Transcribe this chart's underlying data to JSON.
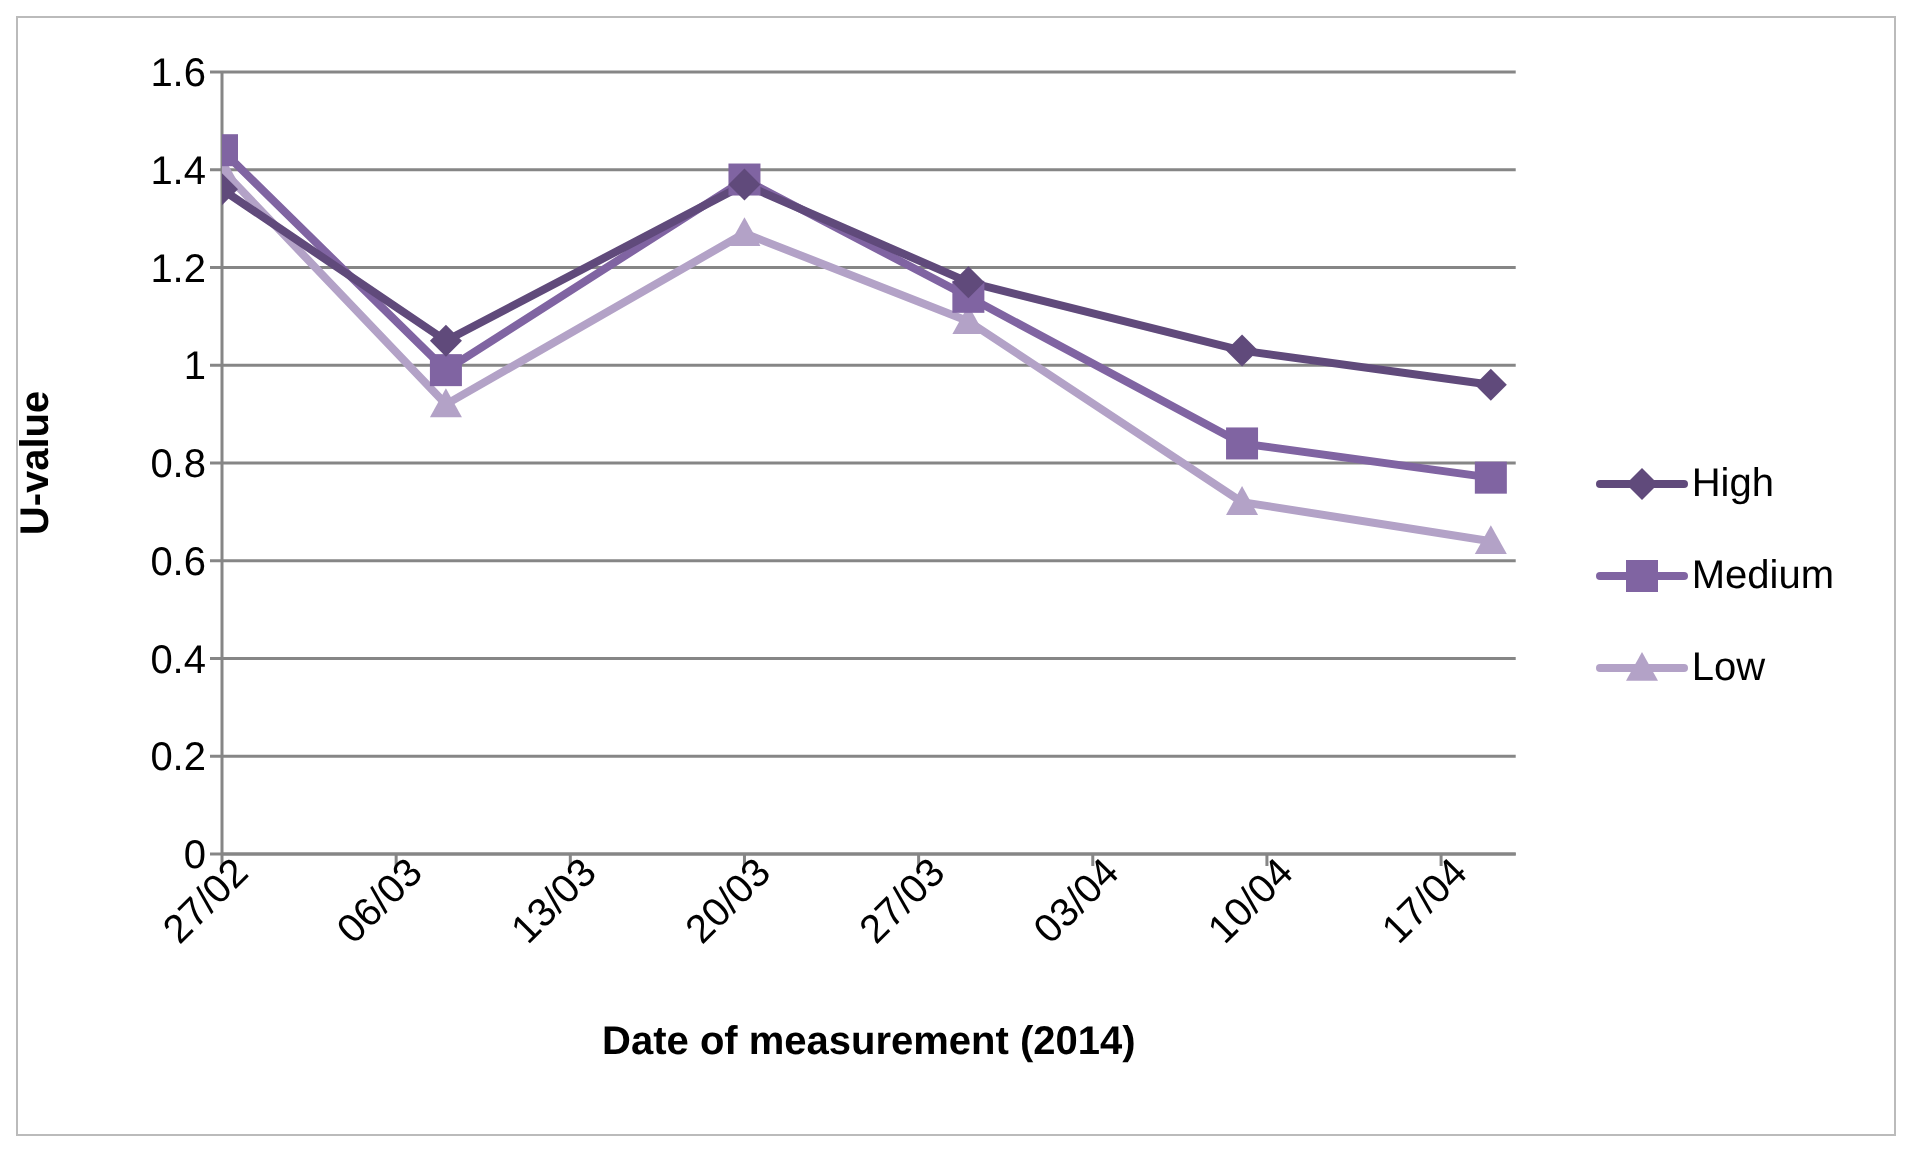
{
  "chart_data": {
    "type": "line",
    "xlabel": "Date of measurement (2014)",
    "ylabel": "U-value",
    "x": [
      "2014-02-27",
      "2014-03-08",
      "2014-03-20",
      "2014-03-29",
      "2014-04-09",
      "2014-04-19"
    ],
    "series": [
      {
        "name": "High",
        "color": "#604a7b",
        "marker": "diamond",
        "values": [
          1.36,
          1.05,
          1.37,
          1.17,
          1.03,
          0.96
        ]
      },
      {
        "name": "Medium",
        "color": "#8064a2",
        "marker": "square",
        "values": [
          1.44,
          0.99,
          1.38,
          1.14,
          0.84,
          0.77
        ]
      },
      {
        "name": "Low",
        "color": "#b3a2c7",
        "marker": "triangle",
        "values": [
          1.4,
          0.92,
          1.27,
          1.09,
          0.72,
          0.64
        ]
      }
    ],
    "xlim": [
      "2014-02-27",
      "2014-04-20"
    ],
    "xticks": [
      {
        "value": "2014-02-27",
        "label": "27/02"
      },
      {
        "value": "2014-03-06",
        "label": "06/03"
      },
      {
        "value": "2014-03-13",
        "label": "13/03"
      },
      {
        "value": "2014-03-20",
        "label": "20/03"
      },
      {
        "value": "2014-03-27",
        "label": "27/03"
      },
      {
        "value": "2014-04-03",
        "label": "03/04"
      },
      {
        "value": "2014-04-10",
        "label": "10/04"
      },
      {
        "value": "2014-04-17",
        "label": "17/04"
      }
    ],
    "ylim": [
      0,
      1.6
    ],
    "yticks": [
      0,
      0.2,
      0.4,
      0.6,
      0.8,
      1,
      1.2,
      1.4,
      1.6
    ],
    "grid": "y",
    "legend": "right",
    "line_style": "solid"
  }
}
